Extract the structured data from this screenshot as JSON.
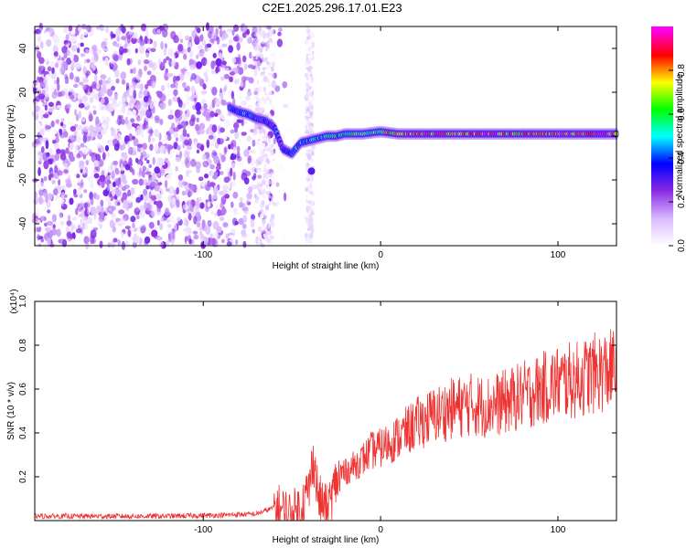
{
  "figure": {
    "title": "C2E1.2025.296.17.01.E23"
  },
  "chart_data": [
    {
      "type": "heatmap",
      "name": "spectrogram",
      "xlabel": "Height of straight line (km)",
      "ylabel": "Frequency (Hz)",
      "xlim": [
        -195,
        133
      ],
      "ylim": [
        -50,
        50
      ],
      "xticks": [
        -100,
        0,
        100
      ],
      "yticks": [
        -40,
        -20,
        0,
        20,
        40
      ],
      "colorbar": {
        "label": "Normalized spectral amplitude",
        "range": [
          0,
          1
        ],
        "ticks": [
          0.0,
          0.2,
          0.4,
          0.6,
          0.8
        ],
        "colormap": [
          "#ffffff",
          "#d9b8ff",
          "#8a2be2",
          "#0000ff",
          "#00ffff",
          "#00ff00",
          "#ffff00",
          "#ff0000",
          "#ff00ff"
        ]
      },
      "noise_region_x": [
        -195,
        -60
      ],
      "signal_ridge": {
        "x": [
          -85,
          -80,
          -75,
          -70,
          -65,
          -60,
          -55,
          -50,
          -45,
          -40,
          -35,
          -30,
          -25,
          -20,
          -10,
          0,
          10,
          20,
          30,
          40,
          50,
          60,
          70,
          80,
          90,
          100,
          110,
          120,
          133
        ],
        "frequency": [
          13,
          11,
          10,
          8,
          7,
          4,
          -6,
          -8,
          -3,
          -2,
          -1,
          0,
          0,
          1,
          1,
          2,
          1,
          1,
          1,
          1,
          1,
          1,
          1,
          1,
          1,
          1,
          1,
          1,
          1
        ],
        "amplitude": [
          0.3,
          0.35,
          0.35,
          0.3,
          0.3,
          0.3,
          0.3,
          0.4,
          0.45,
          0.45,
          0.45,
          0.5,
          0.5,
          0.55,
          0.6,
          0.6,
          0.85,
          0.9,
          0.85,
          0.85,
          0.85,
          0.9,
          0.85,
          0.75,
          0.85,
          0.9,
          0.85,
          0.9,
          0.85
        ]
      },
      "grid": false
    },
    {
      "type": "line",
      "name": "snr",
      "xlabel": "Height of straight line (km)",
      "ylabel": "SNR (10 * v/v)",
      "y_multiplier": "(x10⁴)",
      "xlim": [
        -195,
        133
      ],
      "ylim": [
        0,
        1.0
      ],
      "xticks": [
        -100,
        0,
        100
      ],
      "yticks": [
        0.2,
        0.4,
        0.6,
        0.8,
        1.0
      ],
      "series": [
        {
          "color": "#ee3333",
          "x": [
            -195,
            -160,
            -120,
            -90,
            -70,
            -60,
            -50,
            -45,
            -40,
            -38,
            -35,
            -30,
            -25,
            -20,
            -15,
            -10,
            -5,
            0,
            10,
            20,
            30,
            40,
            50,
            60,
            70,
            80,
            90,
            100,
            110,
            120,
            133
          ],
          "y": [
            0.02,
            0.02,
            0.02,
            0.025,
            0.03,
            0.06,
            0.02,
            0.06,
            0.15,
            0.3,
            0.1,
            0.04,
            0.18,
            0.22,
            0.25,
            0.28,
            0.32,
            0.33,
            0.38,
            0.44,
            0.48,
            0.51,
            0.53,
            0.52,
            0.54,
            0.57,
            0.6,
            0.63,
            0.64,
            0.67,
            0.69
          ]
        }
      ],
      "grid": false
    }
  ]
}
